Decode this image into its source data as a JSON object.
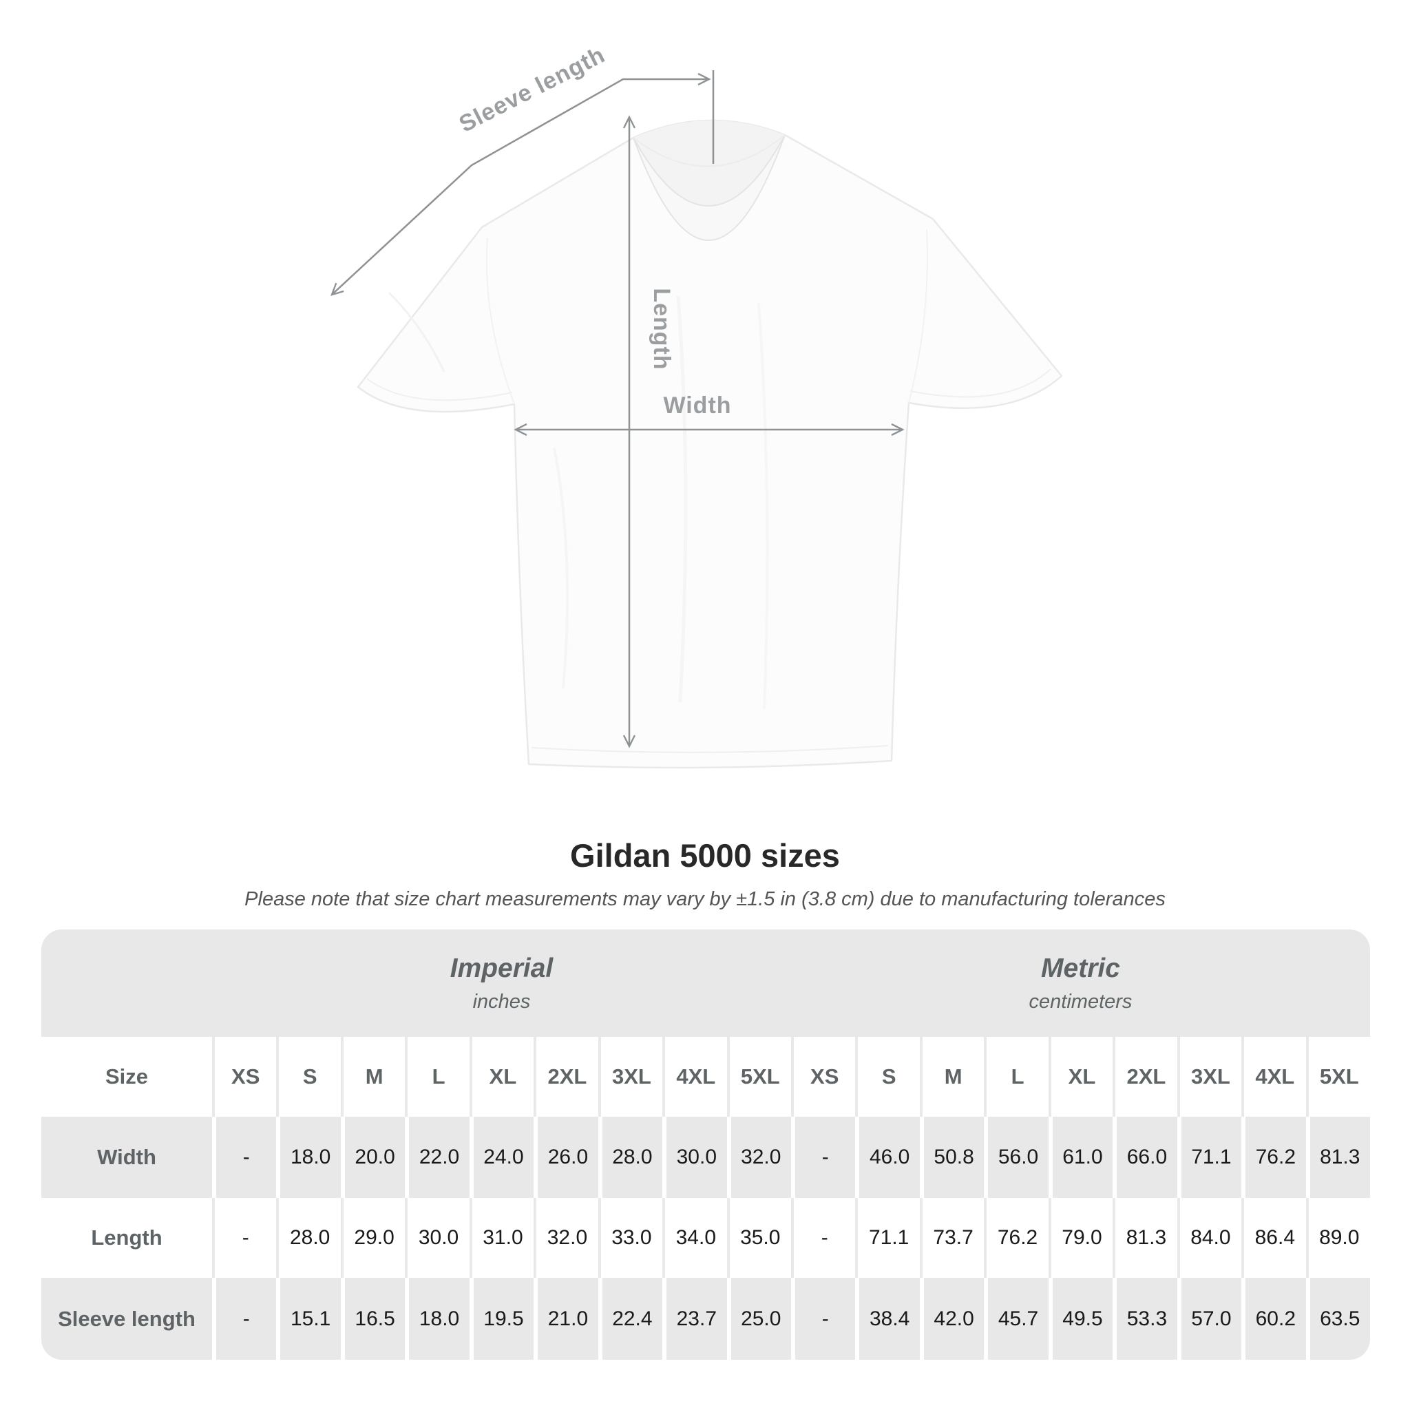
{
  "page": {
    "title": "Gildan 5000 sizes",
    "subtitle": "Please note that size chart measurements may vary by ±1.5 in (3.8 cm) due to manufacturing tolerances"
  },
  "diagram": {
    "sleeve_length_label": "Sleeve length",
    "length_label": "Length",
    "width_label": "Width"
  },
  "table": {
    "unit_groups": [
      {
        "label": "Imperial",
        "sublabel": "inches"
      },
      {
        "label": "Metric",
        "sublabel": "centimeters"
      }
    ],
    "size_header": "Size",
    "sizes": [
      "XS",
      "S",
      "M",
      "L",
      "XL",
      "2XL",
      "3XL",
      "4XL",
      "5XL"
    ],
    "rows": [
      {
        "label": "Width",
        "imperial": [
          "-",
          "18.0",
          "20.0",
          "22.0",
          "24.0",
          "26.0",
          "28.0",
          "30.0",
          "32.0"
        ],
        "metric": [
          "-",
          "46.0",
          "50.8",
          "56.0",
          "61.0",
          "66.0",
          "71.1",
          "76.2",
          "81.3"
        ]
      },
      {
        "label": "Length",
        "imperial": [
          "-",
          "28.0",
          "29.0",
          "30.0",
          "31.0",
          "32.0",
          "33.0",
          "34.0",
          "35.0"
        ],
        "metric": [
          "-",
          "71.1",
          "73.7",
          "76.2",
          "79.0",
          "81.3",
          "84.0",
          "86.4",
          "89.0"
        ]
      },
      {
        "label": "Sleeve length",
        "imperial": [
          "-",
          "15.1",
          "16.5",
          "18.0",
          "19.5",
          "21.0",
          "22.4",
          "23.7",
          "25.0"
        ],
        "metric": [
          "-",
          "38.4",
          "42.0",
          "45.7",
          "49.5",
          "53.3",
          "57.0",
          "60.2",
          "63.5"
        ]
      }
    ]
  },
  "colors": {
    "band_gray": "#e8e8e8",
    "header_text": "#5e6366",
    "value_text": "#1a1a1a",
    "diagram_line": "#8f9294",
    "diagram_label": "#9b9ea0",
    "title_text": "#282828",
    "subtitle_text": "#555555"
  }
}
